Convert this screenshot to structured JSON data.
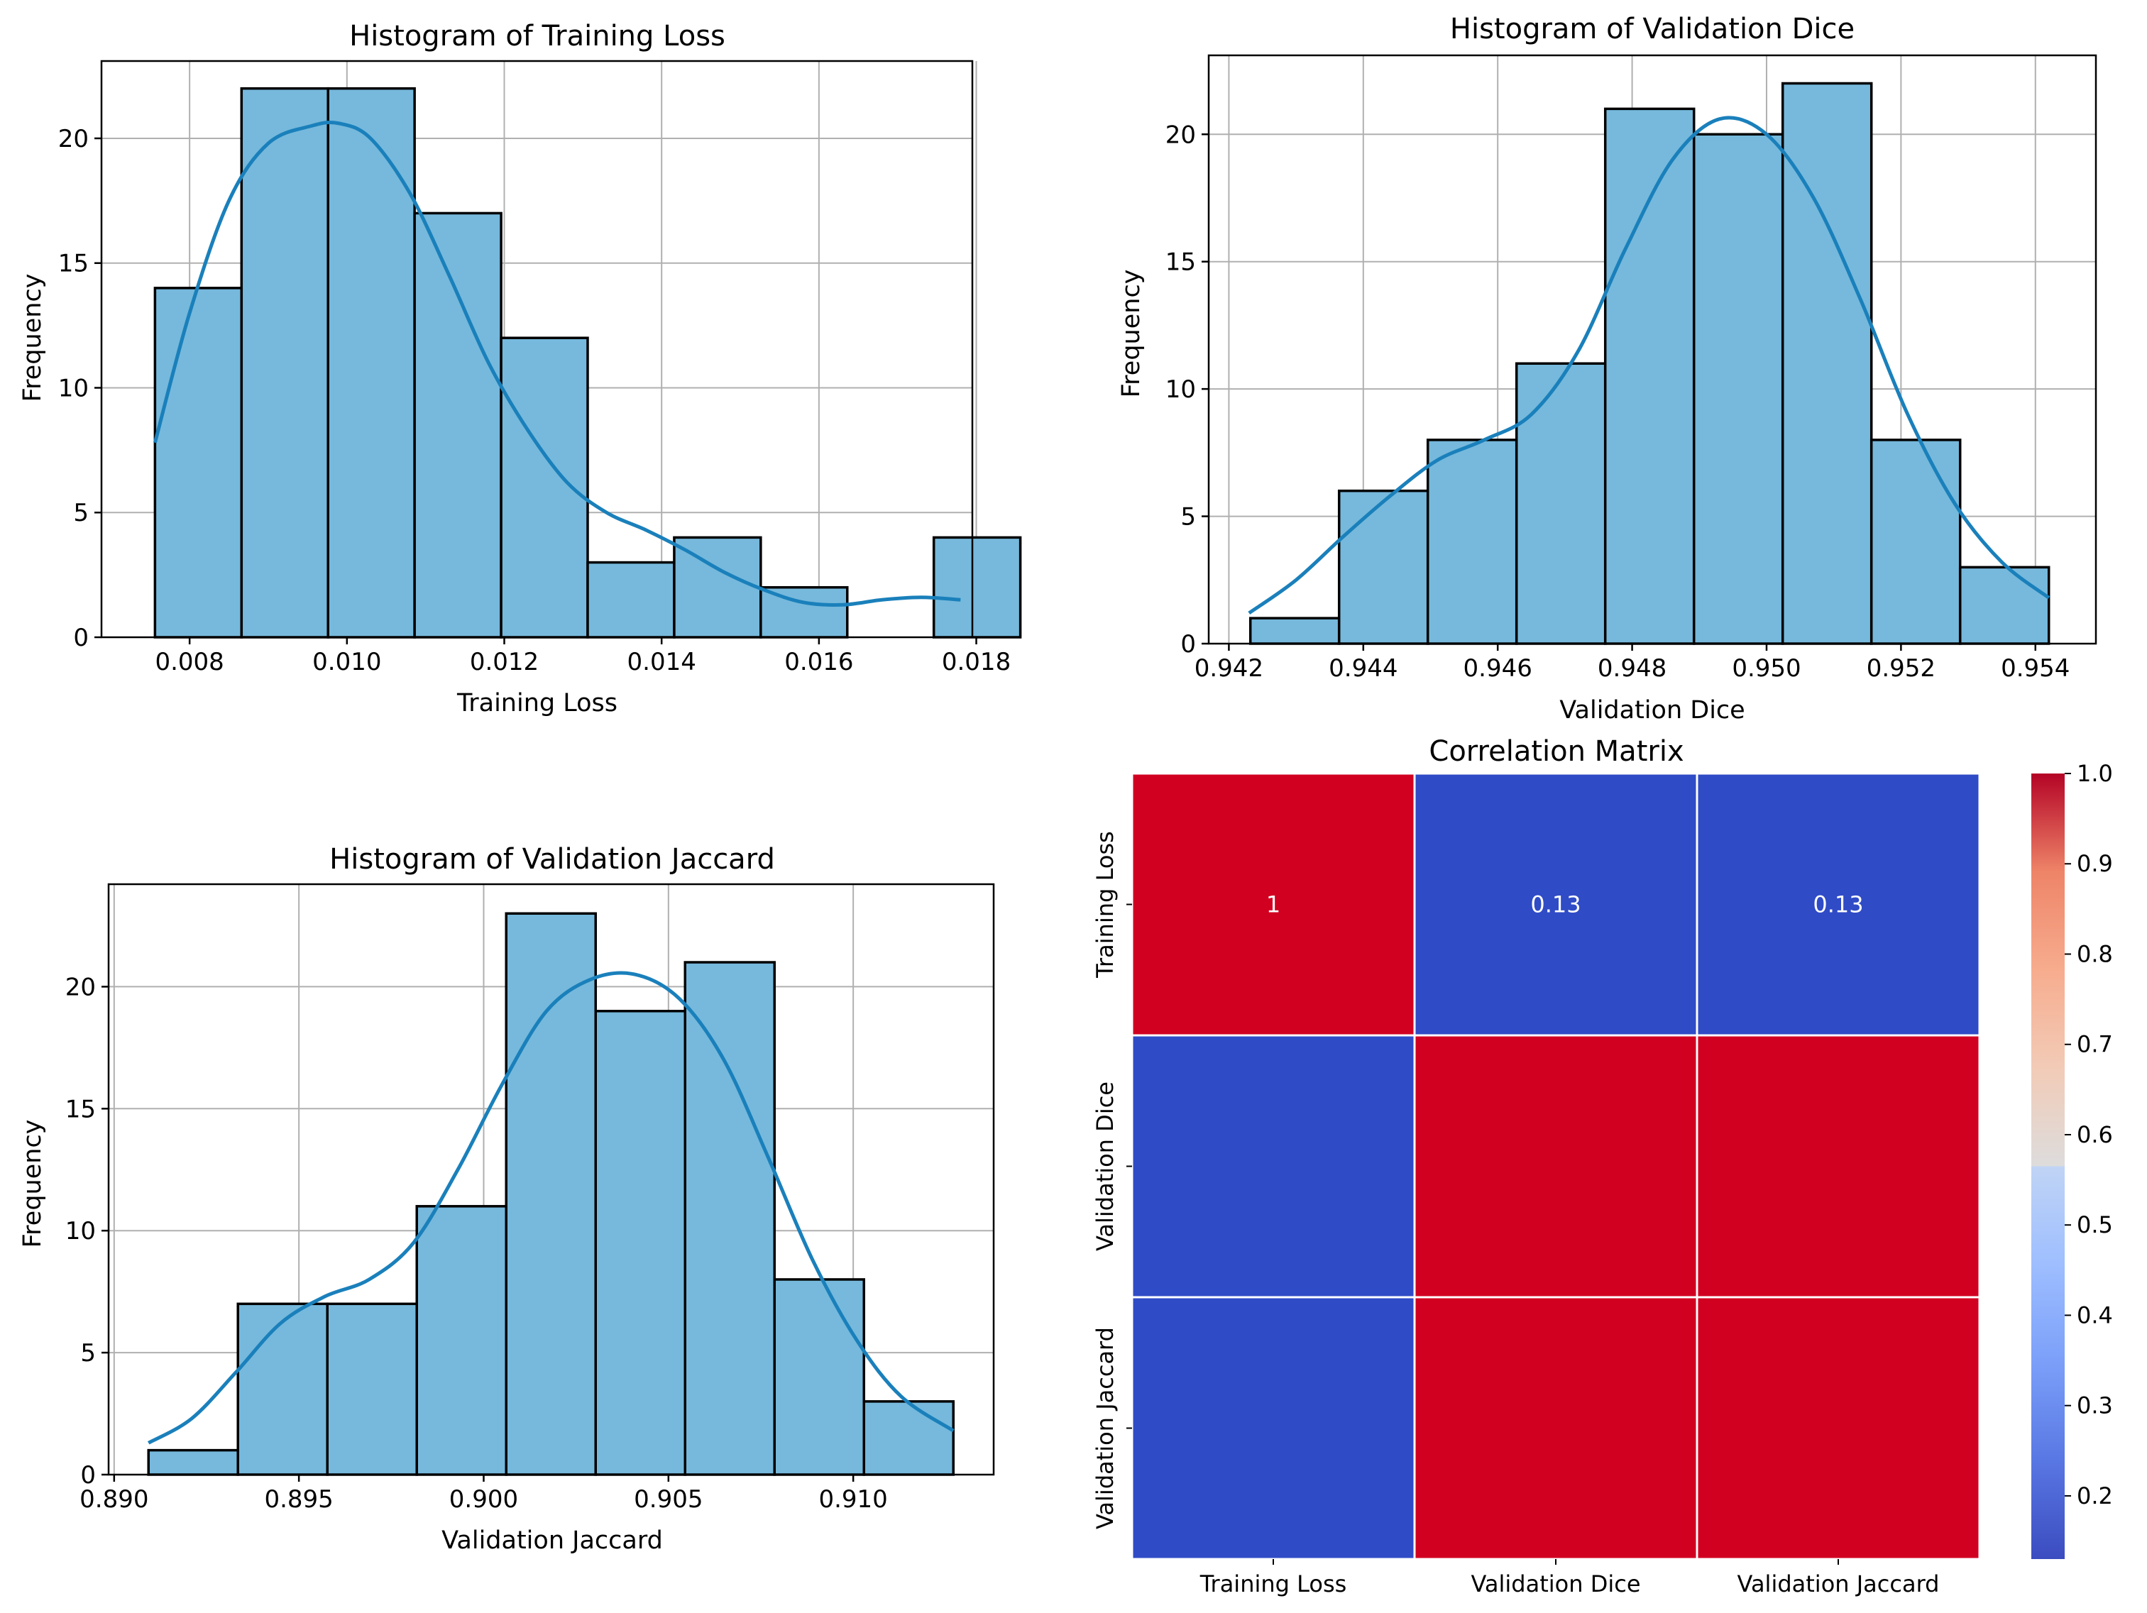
{
  "chart_data": [
    {
      "type": "bar",
      "subtype": "histogram-with-kde",
      "title": "Histogram of Training Loss",
      "xlabel": "Training Loss",
      "ylabel": "Frequency",
      "bin_edges": [
        0.00756,
        0.00866,
        0.00976,
        0.01086,
        0.01196,
        0.01306,
        0.01416,
        0.01526,
        0.01636,
        0.01746,
        0.01856
      ],
      "values": [
        14,
        22,
        22,
        17,
        12,
        3,
        4,
        2,
        0,
        4
      ],
      "xticks": [
        0.008,
        0.01,
        0.012,
        0.014,
        0.016,
        0.018
      ],
      "xtick_labels": [
        "0.008",
        "0.010",
        "0.012",
        "0.014",
        "0.016",
        "0.018"
      ],
      "yticks": [
        0,
        5,
        10,
        15,
        20
      ],
      "ytick_labels": [
        "0",
        "5",
        "10",
        "15",
        "20"
      ],
      "xlim": [
        0.00688,
        0.01795
      ],
      "ylim": [
        0,
        23.1
      ],
      "kde": {
        "x": [
          0.00756,
          0.008,
          0.0085,
          0.009,
          0.00955,
          0.0099,
          0.0103,
          0.0108,
          0.0113,
          0.0118,
          0.0123,
          0.0128,
          0.0133,
          0.0138,
          0.0143,
          0.0148,
          0.0153,
          0.0158,
          0.0163,
          0.0168,
          0.0173,
          0.0178
        ],
        "y": [
          7.8,
          13.0,
          17.5,
          19.8,
          20.5,
          20.6,
          20.0,
          17.8,
          14.5,
          11.0,
          8.3,
          6.2,
          5.0,
          4.3,
          3.5,
          2.6,
          1.9,
          1.4,
          1.3,
          1.5,
          1.6,
          1.5
        ]
      },
      "grid": true
    },
    {
      "type": "bar",
      "subtype": "histogram-with-kde",
      "title": "Histogram of Validation Dice",
      "xlabel": "Validation Dice",
      "ylabel": "Frequency",
      "bin_edges": [
        0.94232,
        0.94364,
        0.94496,
        0.94628,
        0.9476,
        0.94892,
        0.95024,
        0.95156,
        0.95288,
        0.9542
      ],
      "values": [
        1,
        6,
        8,
        11,
        21,
        20,
        22,
        8,
        3
      ],
      "xticks": [
        0.942,
        0.944,
        0.946,
        0.948,
        0.95,
        0.952,
        0.954
      ],
      "xtick_labels": [
        "0.942",
        "0.944",
        "0.946",
        "0.948",
        "0.950",
        "0.952",
        "0.954"
      ],
      "yticks": [
        0,
        5,
        10,
        15,
        20
      ],
      "ytick_labels": [
        "0",
        "5",
        "10",
        "15",
        "20"
      ],
      "xlim": [
        0.9417,
        0.9549
      ],
      "ylim": [
        0,
        23.1
      ],
      "kde": {
        "x": [
          0.9423,
          0.943,
          0.9437,
          0.9444,
          0.9451,
          0.9458,
          0.9465,
          0.9472,
          0.9479,
          0.9486,
          0.9493,
          0.95,
          0.9507,
          0.9514,
          0.9521,
          0.9528,
          0.9535,
          0.9542
        ],
        "y": [
          1.2,
          2.5,
          4.2,
          5.8,
          7.2,
          8.0,
          9.0,
          11.5,
          15.5,
          19.0,
          20.6,
          20.0,
          17.5,
          13.5,
          9.0,
          5.5,
          3.2,
          1.8
        ]
      },
      "grid": true
    },
    {
      "type": "bar",
      "subtype": "histogram-with-kde",
      "title": "Histogram of Validation Jaccard",
      "xlabel": "Validation Jaccard",
      "ylabel": "Frequency",
      "bin_edges": [
        0.89093,
        0.89335,
        0.89577,
        0.89819,
        0.90061,
        0.90303,
        0.90545,
        0.90787,
        0.91029,
        0.91271
      ],
      "values": [
        1,
        7,
        7,
        11,
        23,
        19,
        21,
        8,
        3
      ],
      "xticks": [
        0.89,
        0.895,
        0.9,
        0.905,
        0.91
      ],
      "xtick_labels": [
        "0.890",
        "0.895",
        "0.900",
        "0.905",
        "0.910"
      ],
      "yticks": [
        0,
        5,
        10,
        15,
        20
      ],
      "ytick_labels": [
        "0",
        "5",
        "10",
        "15",
        "20"
      ],
      "xlim": [
        0.88985,
        0.9138
      ],
      "ylim": [
        0,
        24.2
      ],
      "kde": {
        "x": [
          0.89093,
          0.8921,
          0.8933,
          0.8945,
          0.8957,
          0.8969,
          0.8981,
          0.8993,
          0.9005,
          0.9017,
          0.9029,
          0.9041,
          0.9053,
          0.9065,
          0.9077,
          0.9089,
          0.9101,
          0.9113,
          0.91271
        ],
        "y": [
          1.3,
          2.3,
          4.2,
          6.2,
          7.3,
          8.0,
          9.5,
          12.5,
          16.0,
          19.0,
          20.3,
          20.5,
          19.5,
          17.0,
          13.0,
          8.8,
          5.5,
          3.2,
          1.8
        ]
      },
      "grid": true
    },
    {
      "type": "heatmap",
      "title": "Correlation Matrix",
      "rows": [
        "Training Loss",
        "Validation Dice",
        "Validation Jaccard"
      ],
      "cols": [
        "Training Loss",
        "Validation Dice",
        "Validation Jaccard"
      ],
      "values": [
        [
          1.0,
          0.13,
          0.13
        ],
        [
          0.13,
          1.0,
          1.0
        ],
        [
          0.13,
          1.0,
          1.0
        ]
      ],
      "annotations": [
        [
          "1",
          "0.13",
          "0.13"
        ],
        [
          "",
          "",
          ""
        ],
        [
          "",
          "",
          ""
        ]
      ],
      "colormap": "coolwarm",
      "vmin": 0.13,
      "vmax": 1.0,
      "colorbar_ticks": [
        0.2,
        0.3,
        0.4,
        0.5,
        0.6,
        0.7,
        0.8,
        0.9,
        1.0
      ],
      "colorbar_tick_labels": [
        "0.2",
        "0.3",
        "0.4",
        "0.5",
        "0.6",
        "0.7",
        "0.8",
        "0.9",
        "1.0"
      ]
    }
  ],
  "colors": {
    "bar_fill": "#76b9dc",
    "bar_edge": "#000000",
    "kde_line": "#1a80bb",
    "grid": "#b0b0b0",
    "axes": "#000000",
    "heat_low": "#3b4cc0",
    "heat_high": "#b40426",
    "heat_cell_low": "#2f4bc6",
    "heat_cell_high": "#d10021",
    "cell_border": "#ffffff"
  }
}
